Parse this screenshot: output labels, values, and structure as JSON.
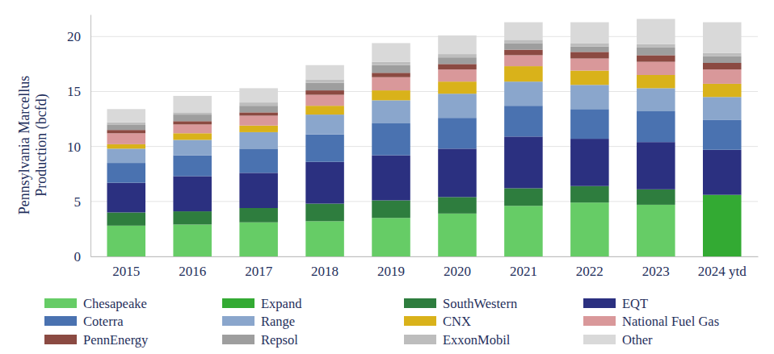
{
  "chart_data": {
    "type": "bar",
    "stacked": true,
    "grid": true,
    "legend": "bottom",
    "y_label": "Pennsylvania Marcellus Production (bcfd)",
    "categories": [
      "2015",
      "2016",
      "2017",
      "2018",
      "2019",
      "2020",
      "2021",
      "2022",
      "2023",
      "2024 ytd"
    ],
    "ylim": [
      0,
      22
    ],
    "yticks": [
      0,
      5,
      10,
      15,
      20
    ],
    "series": [
      {
        "name": "Chesapeake",
        "color": "#66cc66",
        "values": [
          2.8,
          2.9,
          3.1,
          3.2,
          3.5,
          3.9,
          4.6,
          4.9,
          4.7,
          0
        ]
      },
      {
        "name": "Expand",
        "color": "#33aa33",
        "values": [
          0,
          0,
          0,
          0,
          0,
          0,
          0,
          0,
          0,
          5.6
        ]
      },
      {
        "name": "SouthWestern",
        "color": "#2e7d3e",
        "values": [
          1.2,
          1.2,
          1.3,
          1.6,
          1.6,
          1.5,
          1.6,
          1.5,
          1.4,
          0
        ]
      },
      {
        "name": "EQT",
        "color": "#2b3080",
        "values": [
          2.7,
          3.2,
          3.2,
          3.8,
          4.1,
          4.4,
          4.7,
          4.3,
          4.3,
          4.1
        ]
      },
      {
        "name": "Coterra",
        "color": "#4a72b0",
        "values": [
          1.8,
          1.9,
          2.2,
          2.5,
          2.9,
          2.8,
          2.8,
          2.7,
          2.8,
          2.7
        ]
      },
      {
        "name": "Range",
        "color": "#8aa6cc",
        "values": [
          1.3,
          1.4,
          1.5,
          1.8,
          2.1,
          2.2,
          2.2,
          2.2,
          2.1,
          2.1
        ]
      },
      {
        "name": "CNX",
        "color": "#d9b21a",
        "values": [
          0.4,
          0.6,
          0.6,
          0.8,
          0.9,
          1.1,
          1.4,
          1.3,
          1.2,
          1.2
        ]
      },
      {
        "name": "National Fuel Gas",
        "color": "#d9989a",
        "values": [
          1.0,
          0.8,
          0.9,
          1.0,
          1.2,
          1.1,
          1.0,
          1.1,
          1.2,
          1.3
        ]
      },
      {
        "name": "PennEnergy",
        "color": "#8b4a42",
        "values": [
          0.3,
          0.3,
          0.3,
          0.4,
          0.4,
          0.5,
          0.5,
          0.6,
          0.6,
          0.6
        ]
      },
      {
        "name": "Repsol",
        "color": "#9e9e9e",
        "values": [
          0.5,
          0.6,
          0.6,
          0.7,
          0.7,
          0.6,
          0.6,
          0.5,
          0.7,
          0.6
        ]
      },
      {
        "name": "ExxonMobil",
        "color": "#bdbdbd",
        "values": [
          0.2,
          0.2,
          0.3,
          0.3,
          0.3,
          0.3,
          0.3,
          0.3,
          0.3,
          0.3
        ]
      },
      {
        "name": "Other",
        "color": "#d9d9d9",
        "values": [
          1.2,
          1.5,
          1.3,
          1.3,
          1.7,
          1.7,
          1.6,
          1.9,
          2.3,
          2.8
        ]
      }
    ]
  }
}
